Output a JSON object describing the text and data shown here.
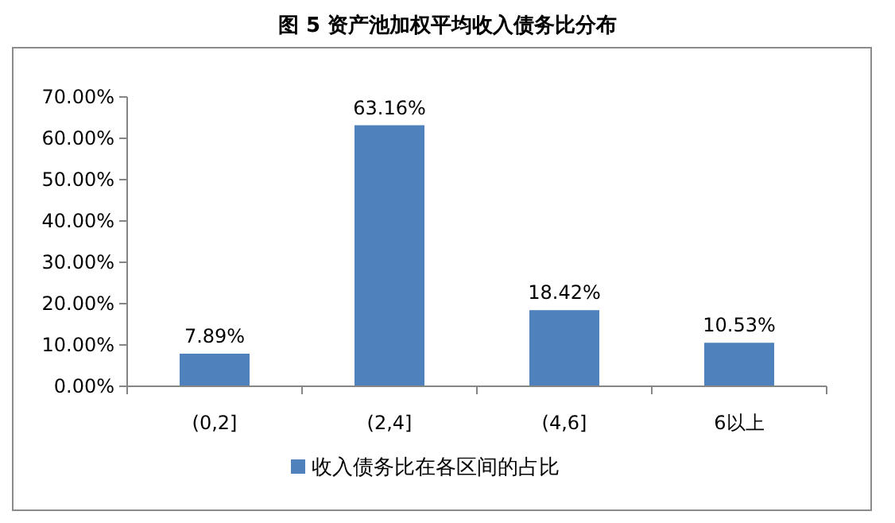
{
  "chart_data": {
    "type": "bar",
    "title": "图 5 资产池加权平均收入债务比分布",
    "categories": [
      "(0,2]",
      "(2,4]",
      "(4,6]",
      "6以上"
    ],
    "series": [
      {
        "name": "收入债务比在各区间的占比",
        "color": "#4f81bd",
        "values": [
          7.89,
          63.16,
          18.42,
          10.53
        ],
        "value_labels": [
          "7.89%",
          "63.16%",
          "18.42%",
          "10.53%"
        ]
      }
    ],
    "ylim": [
      0,
      70
    ],
    "yticks": [
      {
        "value": 0,
        "label": "0.00%"
      },
      {
        "value": 10,
        "label": "10.00%"
      },
      {
        "value": 20,
        "label": "20.00%"
      },
      {
        "value": 30,
        "label": "30.00%"
      },
      {
        "value": 40,
        "label": "40.00%"
      },
      {
        "value": 50,
        "label": "50.00%"
      },
      {
        "value": 60,
        "label": "60.00%"
      },
      {
        "value": 70,
        "label": "70.00%"
      }
    ],
    "legend": "bottom"
  }
}
